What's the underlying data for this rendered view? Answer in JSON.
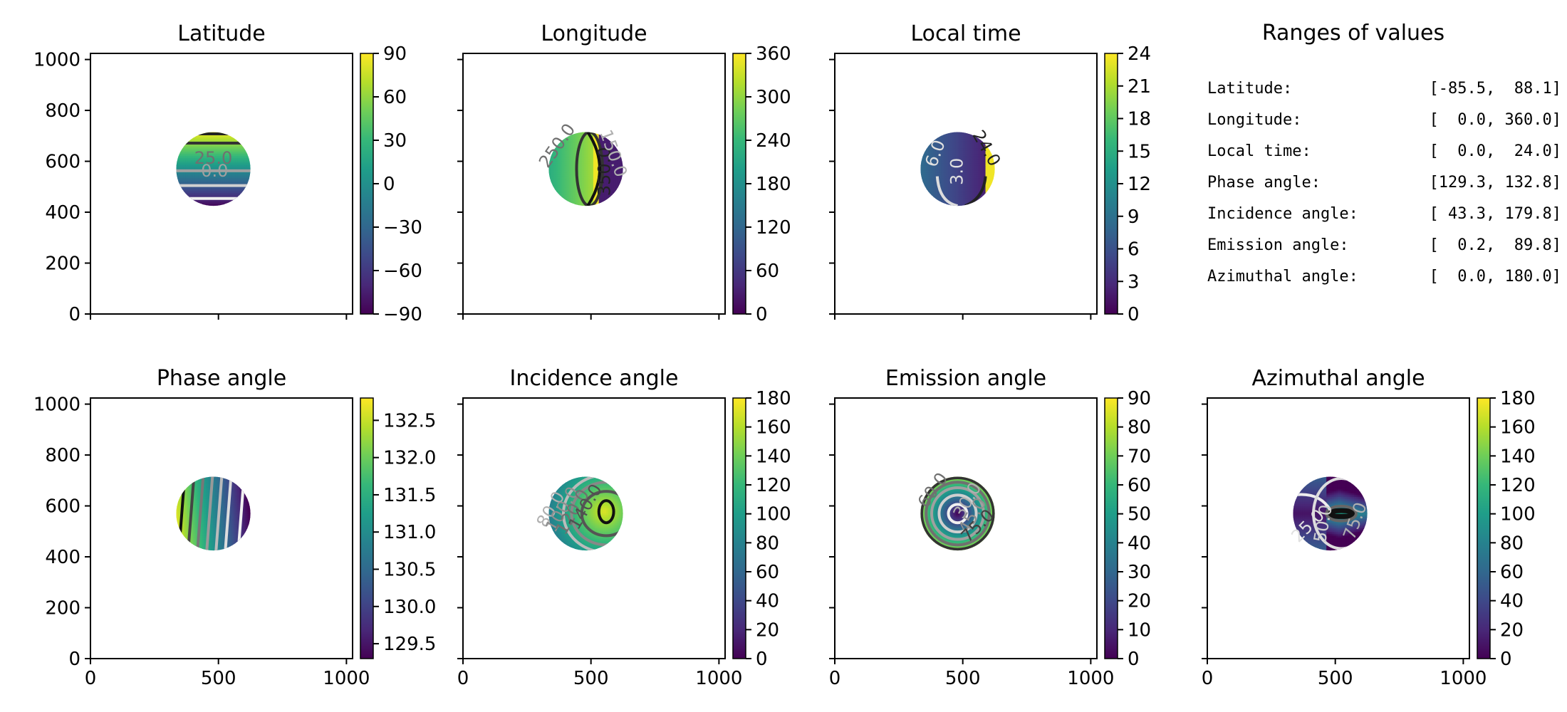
{
  "figure": {
    "colormap": "viridis",
    "viridis_stops": [
      "#440154",
      "#482878",
      "#3e4989",
      "#31688e",
      "#26828e",
      "#1f9e89",
      "#35b779",
      "#6ece58",
      "#b5de2b",
      "#fde725"
    ]
  },
  "chart_data": [
    {
      "type": "heatmap",
      "title": "Latitude",
      "xlim": [
        0,
        1024
      ],
      "ylim": [
        0,
        1024
      ],
      "xticks": [
        0,
        500,
        1000
      ],
      "yticks": [
        0,
        200,
        400,
        600,
        800,
        1000
      ],
      "show_xticklabels": false,
      "show_yticklabels": true,
      "colorbar": {
        "range": [
          -90,
          90
        ],
        "ticks": [
          "90",
          "60",
          "30",
          "0",
          "−30",
          "−60",
          "−90"
        ],
        "tick_values": [
          90,
          60,
          30,
          0,
          -30,
          -60,
          -90
        ]
      },
      "disk": {
        "cx": 480,
        "cy": 570,
        "r": 145
      },
      "field": "latitude",
      "contour_labels": [
        {
          "text": "25.0",
          "x": 480,
          "y": 610,
          "color": "#707070",
          "angle": 0
        },
        {
          "text": "0.0",
          "x": 485,
          "y": 560,
          "color": "#a0a0a0",
          "angle": 0
        }
      ]
    },
    {
      "type": "heatmap",
      "title": "Longitude",
      "xlim": [
        0,
        1024
      ],
      "ylim": [
        0,
        1024
      ],
      "xticks": [
        0,
        500,
        1000
      ],
      "yticks": [
        0,
        200,
        400,
        600,
        800,
        1000
      ],
      "show_xticklabels": false,
      "show_yticklabels": false,
      "colorbar": {
        "range": [
          0,
          360
        ],
        "ticks": [
          "360",
          "300",
          "240",
          "180",
          "120",
          "60",
          "0"
        ],
        "tick_values": [
          360,
          300,
          240,
          180,
          120,
          60,
          0
        ]
      },
      "disk": {
        "cx": 480,
        "cy": 570,
        "r": 145
      },
      "field": "longitude",
      "contour_labels": [
        {
          "text": "250.0",
          "x": 370,
          "y": 660,
          "color": "#707070",
          "angle": -55
        },
        {
          "text": "350.0",
          "x": 555,
          "y": 560,
          "color": "#222222",
          "angle": -90
        },
        {
          "text": "150.0",
          "x": 585,
          "y": 630,
          "color": "#b0b0b0",
          "angle": 70
        }
      ]
    },
    {
      "type": "heatmap",
      "title": "Local time",
      "xlim": [
        0,
        1024
      ],
      "ylim": [
        0,
        1024
      ],
      "xticks": [
        0,
        500,
        1000
      ],
      "yticks": [
        0,
        200,
        400,
        600,
        800,
        1000
      ],
      "show_xticklabels": false,
      "show_yticklabels": false,
      "colorbar": {
        "range": [
          0,
          24
        ],
        "ticks": [
          "24",
          "21",
          "18",
          "15",
          "12",
          "9",
          "6",
          "3",
          "0"
        ],
        "tick_values": [
          24,
          21,
          18,
          15,
          12,
          9,
          6,
          3,
          0
        ]
      },
      "disk": {
        "cx": 480,
        "cy": 570,
        "r": 145
      },
      "field": "localtime",
      "contour_labels": [
        {
          "text": "6.0",
          "x": 395,
          "y": 630,
          "color": "#e0e0e0",
          "angle": -70
        },
        {
          "text": "3.0",
          "x": 480,
          "y": 560,
          "color": "#e0e0e0",
          "angle": -90
        },
        {
          "text": "24.0",
          "x": 590,
          "y": 650,
          "color": "#222222",
          "angle": 60
        }
      ]
    },
    {
      "type": "heatmap",
      "title": "Phase angle",
      "xlim": [
        0,
        1024
      ],
      "ylim": [
        0,
        1024
      ],
      "xticks": [
        0,
        500,
        1000
      ],
      "yticks": [
        0,
        200,
        400,
        600,
        800,
        1000
      ],
      "show_xticklabels": true,
      "show_yticklabels": true,
      "colorbar": {
        "range": [
          129.3,
          132.8
        ],
        "ticks": [
          "132.5",
          "132.0",
          "131.5",
          "131.0",
          "130.5",
          "130.0",
          "129.5"
        ],
        "tick_values": [
          132.5,
          132.0,
          131.5,
          131.0,
          130.5,
          130.0,
          129.5
        ]
      },
      "disk": {
        "cx": 480,
        "cy": 570,
        "r": 145
      },
      "field": "phase",
      "contour_labels": []
    },
    {
      "type": "heatmap",
      "title": "Incidence angle",
      "xlim": [
        0,
        1024
      ],
      "ylim": [
        0,
        1024
      ],
      "xticks": [
        0,
        500,
        1000
      ],
      "yticks": [
        0,
        200,
        400,
        600,
        800,
        1000
      ],
      "show_xticklabels": true,
      "show_yticklabels": false,
      "colorbar": {
        "range": [
          0,
          180
        ],
        "ticks": [
          "180",
          "160",
          "140",
          "120",
          "100",
          "80",
          "60",
          "40",
          "20",
          "0"
        ],
        "tick_values": [
          180,
          160,
          140,
          120,
          100,
          80,
          60,
          40,
          20,
          0
        ]
      },
      "disk": {
        "cx": 480,
        "cy": 570,
        "r": 145
      },
      "field": "incidence",
      "contour_labels": [
        {
          "text": "80.0",
          "x": 345,
          "y": 585,
          "color": "#b0b0b0",
          "angle": -60
        },
        {
          "text": "100.0",
          "x": 390,
          "y": 585,
          "color": "#909090",
          "angle": -60
        },
        {
          "text": "120.0",
          "x": 430,
          "y": 575,
          "color": "#707070",
          "angle": -60
        },
        {
          "text": "140.0",
          "x": 480,
          "y": 595,
          "color": "#505050",
          "angle": -60
        }
      ]
    },
    {
      "type": "heatmap",
      "title": "Emission angle",
      "xlim": [
        0,
        1024
      ],
      "ylim": [
        0,
        1024
      ],
      "xticks": [
        0,
        500,
        1000
      ],
      "yticks": [
        0,
        200,
        400,
        600,
        800,
        1000
      ],
      "show_xticklabels": true,
      "show_yticklabels": false,
      "colorbar": {
        "range": [
          0,
          90
        ],
        "ticks": [
          "90",
          "80",
          "70",
          "60",
          "50",
          "40",
          "30",
          "20",
          "10",
          "0"
        ],
        "tick_values": [
          90,
          80,
          70,
          60,
          50,
          40,
          30,
          20,
          10,
          0
        ]
      },
      "disk": {
        "cx": 480,
        "cy": 570,
        "r": 145
      },
      "field": "emission",
      "contour_labels": [
        {
          "text": "60.0",
          "x": 385,
          "y": 660,
          "color": "#707070",
          "angle": -55
        },
        {
          "text": "30.0",
          "x": 520,
          "y": 620,
          "color": "#b0b0b0",
          "angle": -60
        },
        {
          "text": "45.0",
          "x": 540,
          "y": 560,
          "color": "#909090",
          "angle": -60
        },
        {
          "text": "75.0",
          "x": 560,
          "y": 520,
          "color": "#404040",
          "angle": -45
        }
      ]
    },
    {
      "type": "heatmap",
      "title": "Azimuthal angle",
      "xlim": [
        0,
        1024
      ],
      "ylim": [
        0,
        1024
      ],
      "xticks": [
        0,
        500,
        1000
      ],
      "yticks": [
        0,
        200,
        400,
        600,
        800,
        1000
      ],
      "show_xticklabels": true,
      "show_yticklabels": false,
      "colorbar": {
        "range": [
          0,
          180
        ],
        "ticks": [
          "180",
          "160",
          "140",
          "120",
          "100",
          "80",
          "60",
          "40",
          "20",
          "0"
        ],
        "tick_values": [
          180,
          160,
          140,
          120,
          100,
          80,
          60,
          40,
          20,
          0
        ]
      },
      "disk": {
        "cx": 480,
        "cy": 570,
        "r": 145
      },
      "field": "azimuth",
      "contour_labels": [
        {
          "text": "25.0",
          "x": 395,
          "y": 520,
          "color": "#e0e0e0",
          "angle": -45
        },
        {
          "text": "50.0",
          "x": 455,
          "y": 530,
          "color": "#d0d0d0",
          "angle": -80
        },
        {
          "text": "75.0",
          "x": 580,
          "y": 540,
          "color": "#b0b0b0",
          "angle": -70
        }
      ]
    }
  ],
  "ranges_panel": {
    "title": "Ranges of values",
    "rows": [
      {
        "label": "Latitude:",
        "value": "[-85.5,  88.1]"
      },
      {
        "label": "Longitude:",
        "value": "[  0.0, 360.0]"
      },
      {
        "label": "Local time:",
        "value": "[  0.0,  24.0]"
      },
      {
        "label": "Phase angle:",
        "value": "[129.3, 132.8]"
      },
      {
        "label": "Incidence angle:",
        "value": "[ 43.3, 179.8]"
      },
      {
        "label": "Emission angle:",
        "value": "[  0.2,  89.8]"
      },
      {
        "label": "Azimuthal angle:",
        "value": "[  0.0, 180.0]"
      }
    ]
  }
}
